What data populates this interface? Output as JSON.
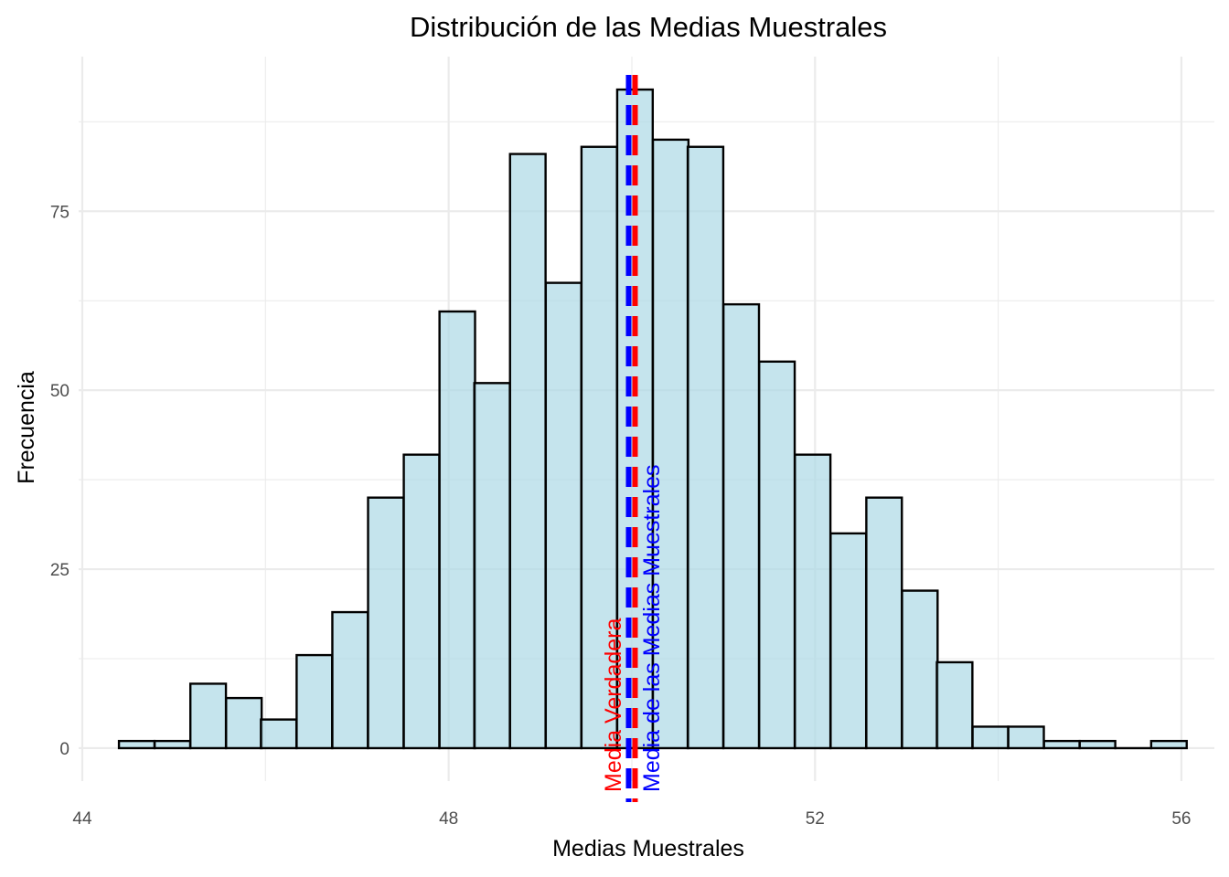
{
  "chart_data": {
    "type": "bar",
    "title": "Distribución de las Medias Muestrales",
    "xlabel": "Medias Muestrales",
    "ylabel": "Frecuencia",
    "xlim": [
      43.96,
      56.36
    ],
    "ylim": [
      -4.6,
      96.6
    ],
    "x_ticks": [
      44,
      48,
      52,
      56
    ],
    "y_ticks": [
      0,
      25,
      50,
      75
    ],
    "grid": true,
    "bar_fill": "#add8e6",
    "bar_stroke": "#000000",
    "bin_width": 0.388,
    "bin_starts": [
      44.4,
      44.79,
      45.18,
      45.57,
      45.95,
      46.34,
      46.73,
      47.12,
      47.51,
      47.9,
      48.28,
      48.67,
      49.06,
      49.45,
      49.84,
      50.23,
      50.61,
      51.0,
      51.39,
      51.78,
      52.17,
      52.56,
      52.95,
      53.33,
      53.72,
      54.11,
      54.5,
      54.89,
      55.28,
      55.67
    ],
    "values": [
      1,
      1,
      9,
      7,
      4,
      13,
      19,
      35,
      41,
      61,
      51,
      83,
      65,
      84,
      92,
      85,
      84,
      62,
      54,
      41,
      30,
      35,
      22,
      12,
      3,
      3,
      1,
      1,
      0,
      1
    ],
    "vlines": [
      {
        "x": 50.0,
        "color": "#ff0000",
        "label": "Media Verdadera"
      },
      {
        "x": 50.0,
        "color": "#0000ff",
        "label": "Media de las Medias Muestrales"
      }
    ]
  }
}
